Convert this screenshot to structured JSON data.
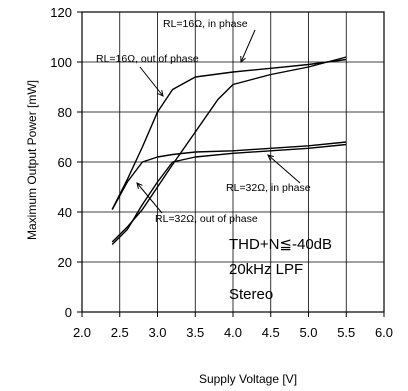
{
  "chart_data": {
    "type": "line",
    "xlabel": "Supply Voltage [V]",
    "ylabel": "Maximum Output Power [mW]",
    "xlim": [
      2.0,
      6.0
    ],
    "ylim": [
      0,
      120
    ],
    "x_ticks": [
      "2.0",
      "2.5",
      "3.0",
      "3.5",
      "4.0",
      "4.5",
      "5.0",
      "5.5",
      "6.0"
    ],
    "y_ticks": [
      "0",
      "20",
      "40",
      "60",
      "80",
      "100",
      "120"
    ],
    "grid": true,
    "legend": "none",
    "series": [
      {
        "name": "RL=16Ω, out of phase",
        "x": [
          2.4,
          2.6,
          2.8,
          3.0,
          3.2,
          3.5,
          4.0,
          4.5,
          5.0,
          5.5
        ],
        "y": [
          41,
          53,
          66,
          80,
          89,
          94,
          96,
          97.5,
          99,
          101
        ]
      },
      {
        "name": "RL=16Ω, in phase",
        "x": [
          2.4,
          2.6,
          2.8,
          3.0,
          3.2,
          3.5,
          3.8,
          4.0,
          4.5,
          5.0,
          5.5
        ],
        "y": [
          28,
          34,
          41,
          50,
          59,
          72,
          85,
          91,
          95,
          98,
          102
        ]
      },
      {
        "name": "RL=32Ω, in phase",
        "x": [
          2.4,
          2.6,
          2.8,
          3.0,
          3.2,
          3.5,
          4.0,
          4.5,
          5.0,
          5.5
        ],
        "y": [
          41,
          52,
          60,
          62,
          63,
          64,
          64.5,
          65.5,
          66.5,
          68
        ]
      },
      {
        "name": "RL=32Ω, out of phase",
        "x": [
          2.4,
          2.6,
          2.8,
          3.0,
          3.2,
          3.5,
          4.0,
          4.5,
          5.0,
          5.5
        ],
        "y": [
          27,
          33,
          43,
          52,
          60,
          62,
          63.5,
          64.5,
          65.5,
          67
        ]
      }
    ],
    "annotations": [
      {
        "text": "RL=16Ω, in phase"
      },
      {
        "text": "RL=16Ω, out of  phase"
      },
      {
        "text": "RL=32Ω, in phase"
      },
      {
        "text": "RL=32Ω, out of phase"
      }
    ],
    "conditions": [
      "THD+N≦-40dB",
      "20kHz LPF",
      "Stereo"
    ]
  }
}
